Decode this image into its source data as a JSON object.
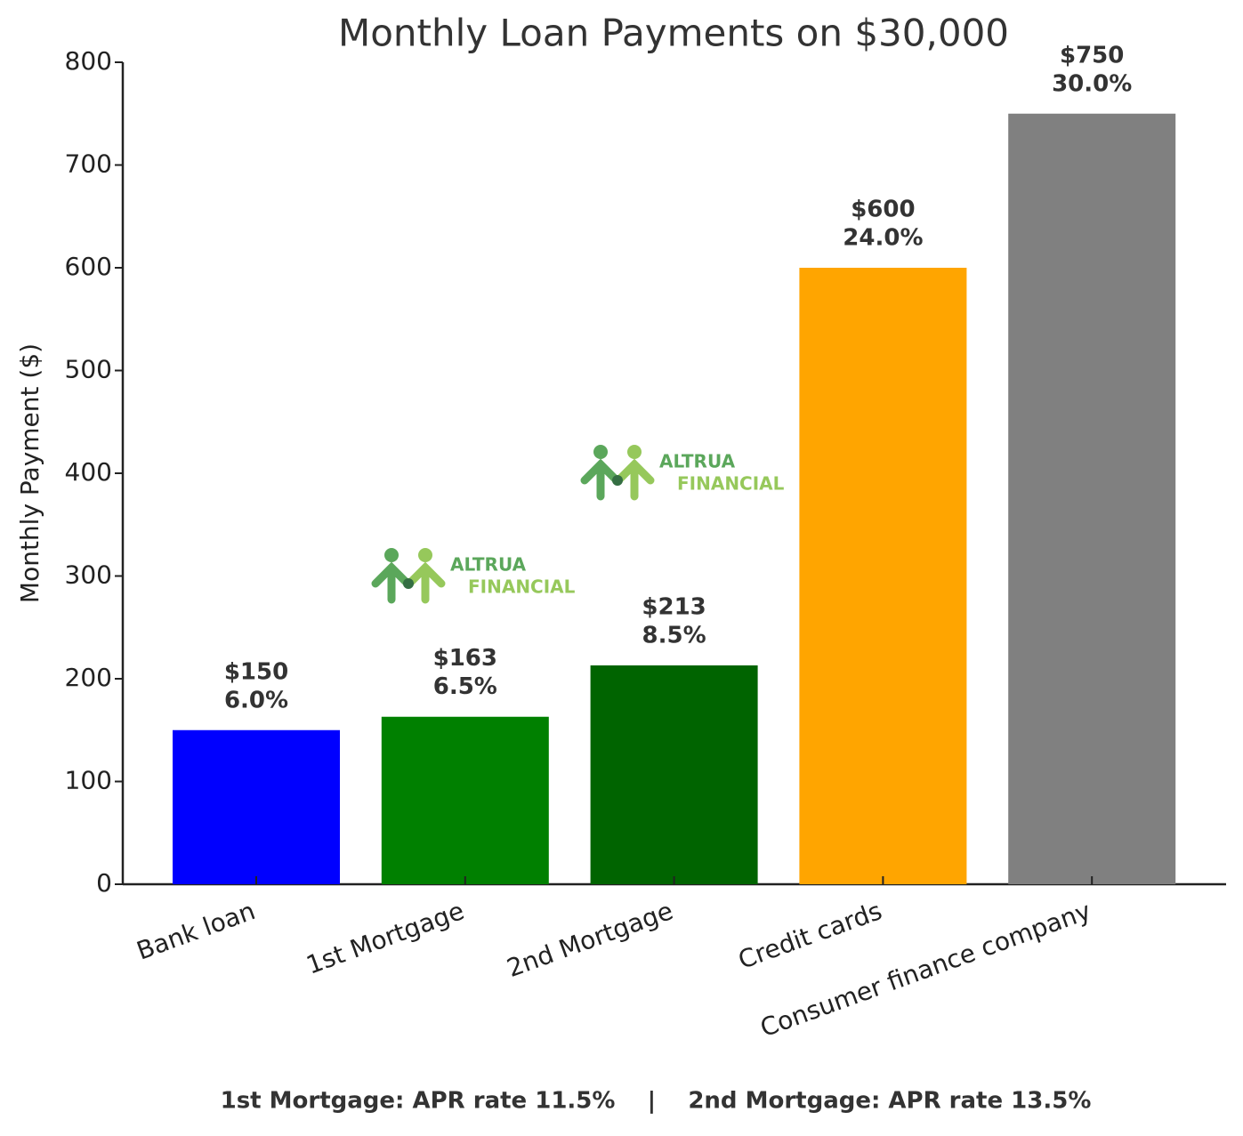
{
  "chart_data": {
    "type": "bar",
    "title": "Monthly Loan Payments on $30,000",
    "y_label": "Monthly Payment ($)",
    "categories": [
      "Bank loan",
      "1st Mortgage",
      "2nd Mortgage",
      "Credit cards",
      "Consumer finance company"
    ],
    "values": [
      150,
      163,
      213,
      600,
      750
    ],
    "value_labels": [
      "$150",
      "$163",
      "$213",
      "$600",
      "$750"
    ],
    "rate_labels": [
      "6.0%",
      "6.5%",
      "8.5%",
      "24.0%",
      "30.0%"
    ],
    "colors": [
      "#0000ff",
      "#008000",
      "#006400",
      "#ffa500",
      "#808080"
    ],
    "ylim": [
      0,
      800
    ],
    "yticks": [
      0,
      100,
      200,
      300,
      400,
      500,
      600,
      700,
      800
    ],
    "grid": false,
    "watermark": [
      "ALTRUA",
      "FINANCIAL"
    ],
    "footnote": "1st Mortgage: APR rate 11.5%    |    2nd Mortgage: APR rate 13.5%"
  }
}
